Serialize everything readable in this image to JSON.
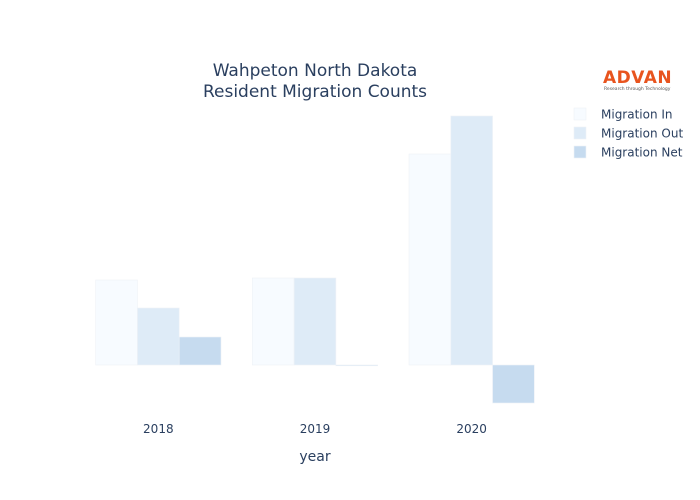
{
  "chart_data": {
    "type": "bar",
    "title_lines": [
      "Wahpeton North Dakota",
      "Resident Migration Counts"
    ],
    "xlabel": "year",
    "ylabel": "",
    "categories": [
      "2018",
      "2019",
      "2020"
    ],
    "series": [
      {
        "name": "Migration In",
        "values": [
          85,
          87,
          211
        ],
        "color": "#f7fbff"
      },
      {
        "name": "Migration Out",
        "values": [
          57,
          87,
          249
        ],
        "color": "#deebf7"
      },
      {
        "name": "Migration Net",
        "values": [
          28,
          0,
          -38
        ],
        "color": "#c6dbef"
      }
    ],
    "ylim": [
      -45,
      255
    ],
    "grid": false,
    "legend_position": "top-right"
  },
  "logo": {
    "name": "ADVAN",
    "tagline": "Research through Technology"
  }
}
